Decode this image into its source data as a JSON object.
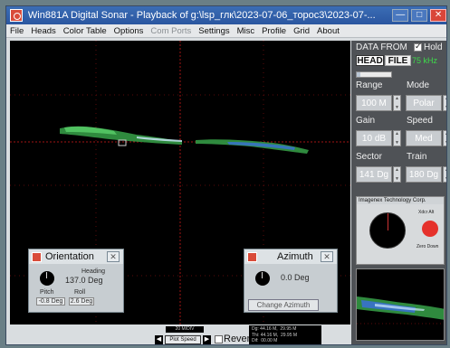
{
  "window": {
    "title": "Win881A Digital Sonar - Playback of g:\\lsp_глк\\2023-07-06_торос3\\2023-07-...",
    "controls": {
      "minimize": "—",
      "maximize": "□",
      "close": "✕"
    }
  },
  "menu": [
    {
      "label": "File",
      "enabled": true
    },
    {
      "label": "Heads",
      "enabled": true
    },
    {
      "label": "Color Table",
      "enabled": true
    },
    {
      "label": "Options",
      "enabled": true
    },
    {
      "label": "Com Ports",
      "enabled": false
    },
    {
      "label": "Settings",
      "enabled": true
    },
    {
      "label": "Misc",
      "enabled": true
    },
    {
      "label": "Profile",
      "enabled": true
    },
    {
      "label": "Grid",
      "enabled": true
    },
    {
      "label": "About",
      "enabled": true
    }
  ],
  "orientation": {
    "title": "Orientation",
    "close": "✕",
    "heading_label": "Heading",
    "heading_value": "137.0 Deg",
    "pitch_label": "Pitch",
    "pitch_value": "-0.8 Deg",
    "roll_label": "Roll",
    "roll_value": "2.6 Deg"
  },
  "azimuth": {
    "title": "Azimuth",
    "close": "✕",
    "value": "0.0 Deg",
    "change_button": "Change Azimuth"
  },
  "statusbar": {
    "scale": "20 M/DIV",
    "left_arrow": "◀",
    "right_arrow": "▶",
    "plot_speed": "Plot Speed",
    "reverse_label": "Rever",
    "readout": "Dg: 44.16 M,  29.95 M\nThi: 44.16 M,  29.95 M\nDif:  00.00 M"
  },
  "right_panel": {
    "data_from": "DATA FROM",
    "hold_label": "Hold",
    "hold_checked": true,
    "head_button": "HEAD",
    "file_button": "FILE",
    "frequency": "75 kHz",
    "slider_position": 0.1,
    "range_label": "Range",
    "range_value": "100 M",
    "mode_label": "Mode",
    "mode_value": "Polar",
    "gain_label": "Gain",
    "gain_value": "10 dB",
    "speed_label": "Speed",
    "speed_value": "Med",
    "sector_label": "Sector",
    "sector_value": "141 Dg",
    "train_label": "Train",
    "train_value": "180 Dg"
  },
  "mini_panel": {
    "title": "Imagenex Technology Corp.",
    "xdcr_alt": "Xdcr Alt",
    "zero_down": "Zero Down"
  },
  "colors": {
    "sonar_green": "#3ab84a",
    "sonar_blue": "#3a6fd8",
    "grid_red": "#7a1010",
    "frequency_green": "#3ddc4a"
  }
}
